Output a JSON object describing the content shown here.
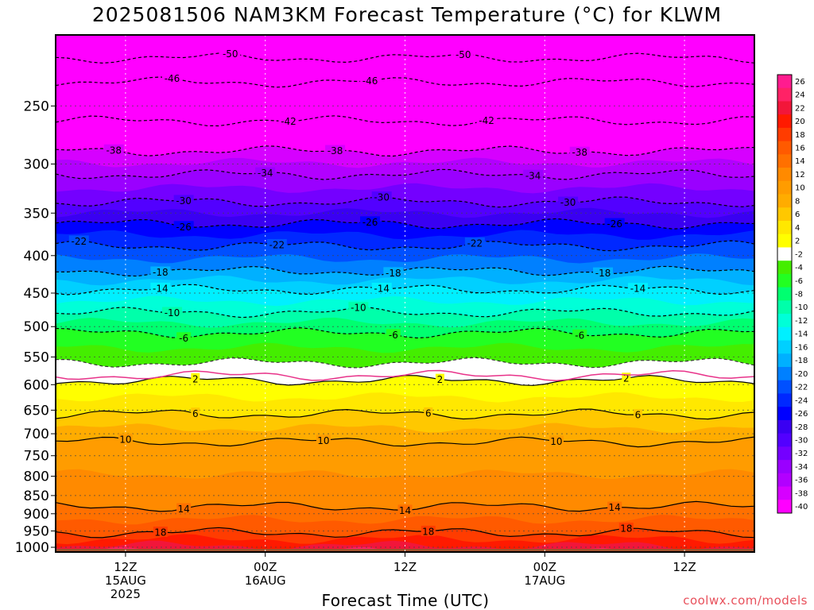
{
  "title": "2025081506 NAM3KM Forecast Temperature (°C) for KLWM",
  "x_axis_label": "Forecast Time (UTC)",
  "credit": "coolwx.com/models",
  "chart_data": {
    "type": "heatmap",
    "title": "2025081506 NAM3KM Forecast Temperature (°C) for KLWM",
    "xlabel": "Forecast Time (UTC)",
    "ylabel": "",
    "x_ticks": [
      {
        "lines": [
          "12Z",
          "15AUG",
          "2025"
        ],
        "hour": 6
      },
      {
        "lines": [
          "00Z",
          "16AUG"
        ],
        "hour": 18
      },
      {
        "lines": [
          "12Z"
        ],
        "hour": 30
      },
      {
        "lines": [
          "00Z",
          "17AUG"
        ],
        "hour": 42
      },
      {
        "lines": [
          "12Z"
        ],
        "hour": 54
      }
    ],
    "xlim_hours": [
      0,
      60
    ],
    "y_scale": "log-pressure",
    "y_ticks": [
      250,
      300,
      350,
      400,
      450,
      500,
      550,
      600,
      650,
      700,
      750,
      800,
      850,
      900,
      950,
      1000
    ],
    "ylim_hpa": [
      200,
      1015
    ],
    "grid": true,
    "colorbar": {
      "labels": [
        26,
        24,
        22,
        20,
        18,
        16,
        14,
        12,
        10,
        8,
        6,
        4,
        2,
        -2,
        -4,
        -6,
        -8,
        -10,
        -12,
        -14,
        -16,
        -18,
        -20,
        -22,
        -24,
        -26,
        -28,
        -30,
        -32,
        -34,
        -36,
        -38,
        -40
      ],
      "colors": [
        "#ff1c8f",
        "#ff2266",
        "#f2163a",
        "#ff1a00",
        "#ff3c00",
        "#ff5a00",
        "#ff7000",
        "#ff8a00",
        "#ff9c00",
        "#ffac00",
        "#ffc800",
        "#ffe800",
        "#ffff00",
        "#ffffff",
        "#44ee00",
        "#22ff22",
        "#00ff70",
        "#00ffaa",
        "#00ffd8",
        "#00f0ff",
        "#00d0ff",
        "#00b0ff",
        "#0080ff",
        "#0050ff",
        "#0028ff",
        "#0000ff",
        "#3a00f2",
        "#5200ff",
        "#7400ff",
        "#9a00ff",
        "#b200ff",
        "#d600ff",
        "#ff00ff"
      ]
    },
    "isotherms": [
      {
        "value": -50,
        "pressure_hpa": 215,
        "labels_at_hours": [
          15,
          35
        ]
      },
      {
        "value": -46,
        "pressure_hpa": 232,
        "labels_at_hours": [
          10,
          27
        ]
      },
      {
        "value": -42,
        "pressure_hpa": 262,
        "labels_at_hours": [
          20,
          37
        ]
      },
      {
        "value": -38,
        "pressure_hpa": 288,
        "labels_at_hours": [
          5,
          24,
          45
        ]
      },
      {
        "value": -34,
        "pressure_hpa": 310,
        "labels_at_hours": [
          18,
          41
        ]
      },
      {
        "value": -30,
        "pressure_hpa": 338,
        "labels_at_hours": [
          11,
          28,
          44
        ]
      },
      {
        "value": -26,
        "pressure_hpa": 362,
        "labels_at_hours": [
          11,
          27,
          48
        ]
      },
      {
        "value": -22,
        "pressure_hpa": 388,
        "labels_at_hours": [
          2,
          19,
          36
        ]
      },
      {
        "value": -18,
        "pressure_hpa": 420,
        "labels_at_hours": [
          9,
          29,
          47
        ]
      },
      {
        "value": -14,
        "pressure_hpa": 445,
        "labels_at_hours": [
          9,
          28,
          50
        ]
      },
      {
        "value": -10,
        "pressure_hpa": 478,
        "labels_at_hours": [
          10,
          26
        ]
      },
      {
        "value": -6,
        "pressure_hpa": 510,
        "labels_at_hours": [
          11,
          29,
          45
        ]
      },
      {
        "value": -2,
        "pressure_hpa": 560,
        "labels_at_hours": []
      },
      {
        "value": 2,
        "pressure_hpa": 592,
        "labels_at_hours": [
          12,
          33,
          49
        ]
      },
      {
        "value": 6,
        "pressure_hpa": 658,
        "labels_at_hours": [
          12,
          32,
          50
        ]
      },
      {
        "value": 10,
        "pressure_hpa": 718,
        "labels_at_hours": [
          6,
          23,
          43
        ]
      },
      {
        "value": 14,
        "pressure_hpa": 880,
        "labels_at_hours": [
          11,
          30,
          48
        ]
      },
      {
        "value": 18,
        "pressure_hpa": 955,
        "labels_at_hours": [
          9,
          32,
          49
        ]
      }
    ],
    "zero_line_pressure_hpa": 583,
    "ground_level_hpa": 1005
  }
}
